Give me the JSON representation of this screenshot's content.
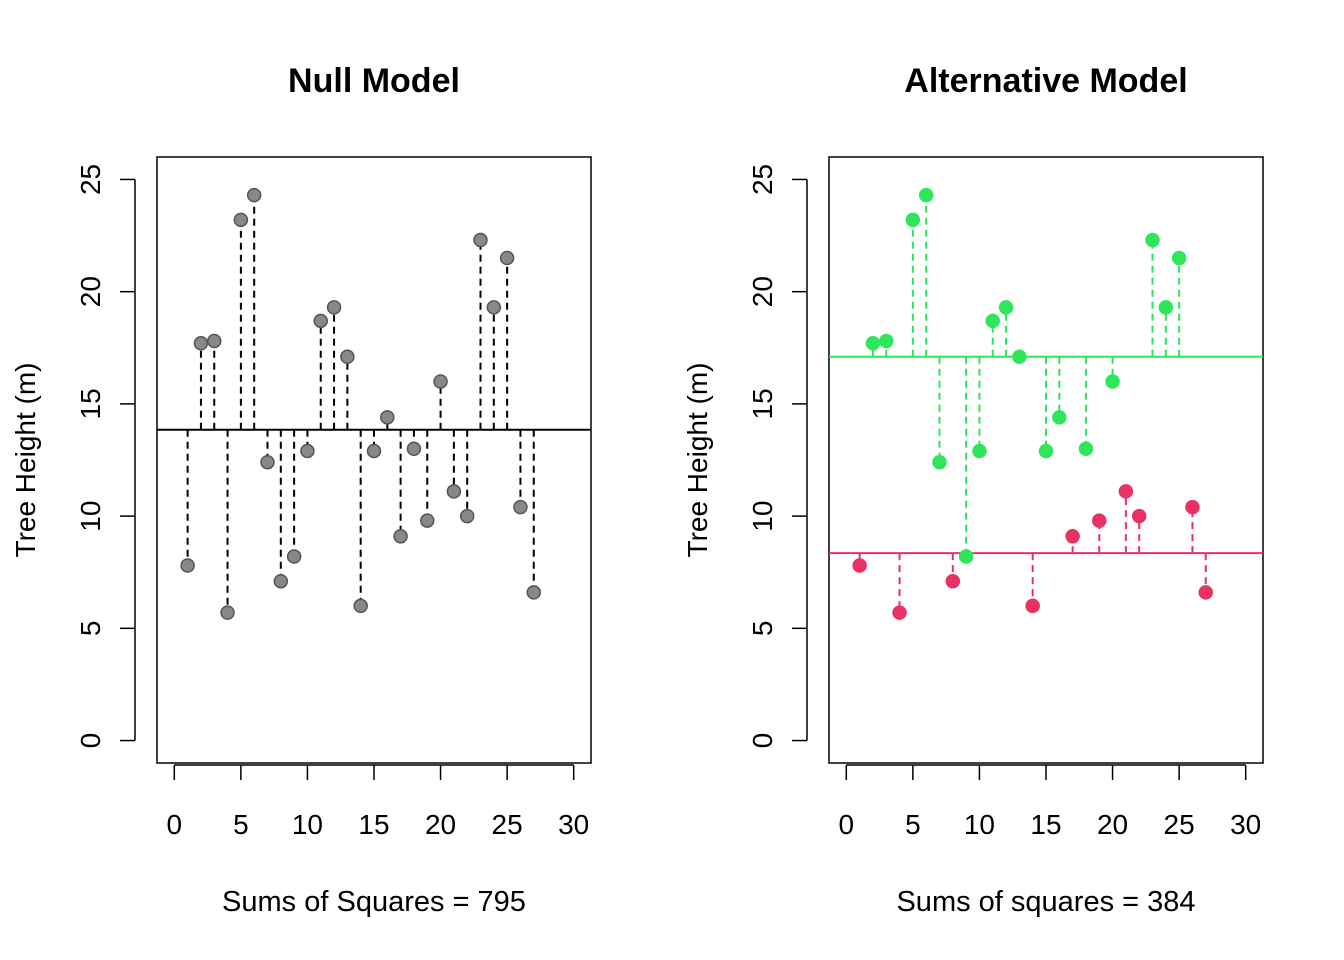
{
  "chart_data": [
    {
      "type": "scatter",
      "title": "Null Model",
      "xlabel": "Sums of Squares = 795",
      "ylabel": "Tree Height (m)",
      "xlim": [
        -1.3,
        31.3
      ],
      "ylim": [
        -1,
        26
      ],
      "xticks": [
        0,
        5,
        10,
        15,
        20,
        25,
        30
      ],
      "yticks": [
        0,
        5,
        10,
        15,
        20,
        25
      ],
      "grid": false,
      "mean_lines": [
        {
          "value": 13.85,
          "color": "#000000"
        }
      ],
      "point_color": "#888888",
      "residual_color": "#000000",
      "series": [
        {
          "x": [
            1,
            2,
            3,
            4,
            5,
            6,
            7,
            8,
            9,
            10,
            11,
            12,
            13,
            14,
            15,
            16,
            17,
            18,
            19,
            20,
            21,
            22,
            23,
            24,
            25,
            26,
            27
          ],
          "values": [
            7.8,
            17.7,
            17.8,
            5.7,
            23.2,
            24.3,
            12.4,
            7.1,
            8.2,
            12.9,
            18.7,
            19.3,
            17.1,
            6.0,
            12.9,
            14.4,
            9.1,
            13.0,
            9.8,
            16.0,
            11.1,
            10.0,
            22.3,
            19.3,
            21.5,
            10.4,
            6.6
          ]
        }
      ]
    },
    {
      "type": "scatter",
      "title": "Alternative Model",
      "xlabel": "Sums of squares = 384",
      "ylabel": "Tree Height (m)",
      "xlim": [
        -1.3,
        31.3
      ],
      "ylim": [
        -1,
        26
      ],
      "xticks": [
        0,
        5,
        10,
        15,
        20,
        25,
        30
      ],
      "yticks": [
        0,
        5,
        10,
        15,
        20,
        25
      ],
      "grid": false,
      "mean_lines": [
        {
          "value": 17.1,
          "color": "#2ee65a"
        },
        {
          "value": 8.35,
          "color": "#e83264"
        }
      ],
      "series": [
        {
          "color": "#2ee65a",
          "mean": 17.1,
          "x": [
            2,
            3,
            5,
            6,
            7,
            9,
            10,
            11,
            12,
            13,
            15,
            16,
            18,
            20,
            23,
            24,
            25
          ],
          "values": [
            17.7,
            17.8,
            23.2,
            24.3,
            12.4,
            8.2,
            12.9,
            18.7,
            19.3,
            17.1,
            12.9,
            14.4,
            13.0,
            16.0,
            22.3,
            19.3,
            21.5
          ]
        },
        {
          "color": "#e83264",
          "mean": 8.35,
          "x": [
            1,
            4,
            8,
            14,
            17,
            19,
            21,
            22,
            26,
            27
          ],
          "values": [
            7.8,
            5.7,
            7.1,
            6.0,
            9.1,
            9.8,
            11.1,
            10.0,
            10.4,
            6.6
          ]
        }
      ]
    }
  ]
}
